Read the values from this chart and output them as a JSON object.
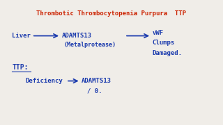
{
  "title": "Thrombotic Thrombocytopenia Purpura  TTP",
  "title_color": "#cc2200",
  "bg_color": "#f0ede8",
  "blue_color": "#1a3aad",
  "line1_left": "Liver",
  "line1_mid": "ADAMTS13",
  "line1_mid2": "(Metalprotease)",
  "line1_right1": "vWF",
  "line1_right2": "Clumps",
  "line1_right3": "Damaged.",
  "line2_label": "TTP:",
  "line2_left": "Deficiency",
  "line2_right": "ADAMTS13",
  "line2_right2": "/ 0."
}
